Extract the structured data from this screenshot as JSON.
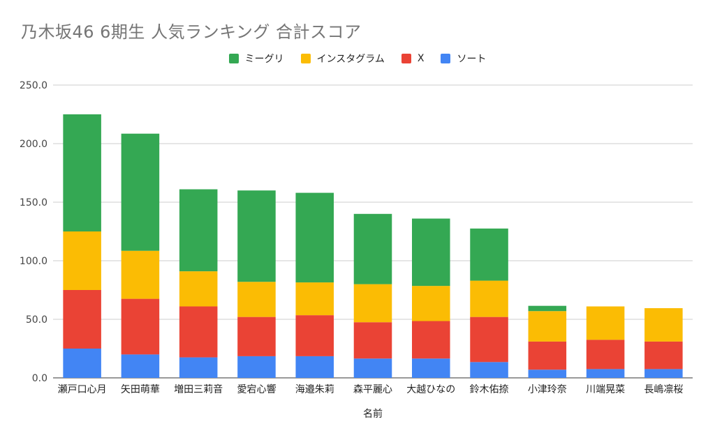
{
  "chart_data": {
    "type": "bar",
    "stacked": true,
    "title": "乃木坂46 6期生 人気ランキング 合計スコア",
    "xlabel": "名前",
    "ylabel": "",
    "ylim": [
      0,
      250
    ],
    "yticks": [
      "0.0",
      "50.0",
      "100.0",
      "150.0",
      "200.0",
      "250.0"
    ],
    "grid": true,
    "legend_position": "top",
    "categories": [
      "瀬戸口心月",
      "矢田萌華",
      "増田三莉音",
      "愛宕心響",
      "海邉朱莉",
      "森平麗心",
      "大越ひなの",
      "鈴木佑捺",
      "小津玲奈",
      "川端晃菜",
      "長嶋凛桜"
    ],
    "series": [
      {
        "name": "ソート",
        "color": "#4285F4",
        "values": [
          25,
          20,
          17.5,
          18.5,
          18.5,
          16.5,
          16.5,
          13.5,
          7,
          7.5,
          7.5
        ]
      },
      {
        "name": "X",
        "color": "#EA4335",
        "values": [
          50,
          47.5,
          43.5,
          33.5,
          35,
          31,
          32,
          38.5,
          24,
          25,
          23.5
        ]
      },
      {
        "name": "インスタグラム",
        "color": "#FBBC04",
        "values": [
          50,
          41,
          30,
          30,
          28,
          32.5,
          30,
          31,
          26,
          28.5,
          28.5
        ]
      },
      {
        "name": "ミーグリ",
        "color": "#34A853",
        "values": [
          100,
          100,
          70,
          78,
          76.5,
          60,
          57.5,
          44.5,
          4.5,
          0,
          0
        ]
      }
    ]
  },
  "legend_order": [
    "ミーグリ",
    "インスタグラム",
    "X",
    "ソート"
  ]
}
